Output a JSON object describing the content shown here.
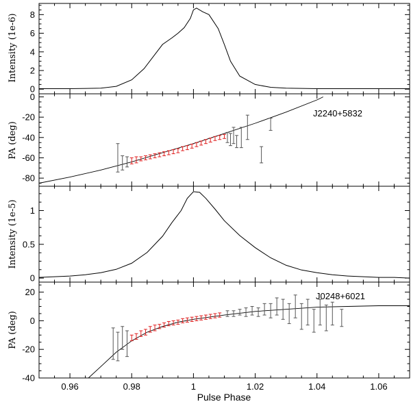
{
  "chart_data": [
    {
      "type": "line",
      "panel": "intensity",
      "ylabel": "Intensity (1e-6)",
      "xlim": [
        0.95,
        1.07
      ],
      "ylim": [
        -0.5,
        9.2
      ],
      "yticks": [
        0,
        2,
        4,
        6,
        8
      ],
      "series": [
        {
          "name": "J2240+5832 profile",
          "x": [
            0.95,
            0.96,
            0.97,
            0.975,
            0.98,
            0.984,
            0.987,
            0.99,
            0.993,
            0.995,
            0.997,
            0.999,
            1.0,
            1.001,
            1.003,
            1.005,
            1.008,
            1.01,
            1.012,
            1.015,
            1.02,
            1.025,
            1.03,
            1.04,
            1.05,
            1.06,
            1.07
          ],
          "y": [
            0.05,
            0.05,
            0.1,
            0.3,
            1.0,
            2.2,
            3.5,
            4.8,
            5.5,
            6.0,
            6.6,
            7.6,
            8.5,
            8.7,
            8.3,
            8.0,
            6.5,
            4.8,
            3.0,
            1.4,
            0.5,
            0.2,
            0.1,
            0.05,
            0.05,
            0.05,
            0.05
          ]
        }
      ]
    },
    {
      "type": "scatter",
      "panel": "pa",
      "pulsar": "J2240+5832",
      "ylabel": "PA (deg)",
      "xlim": [
        0.95,
        1.07
      ],
      "ylim": [
        -88,
        3
      ],
      "yticks": [
        0,
        -20,
        -40,
        -60,
        -80
      ],
      "fit": {
        "x": [
          0.95,
          0.96,
          0.97,
          0.98,
          0.99,
          1.0,
          1.01,
          1.02,
          1.03,
          1.04,
          1.042
        ],
        "y": [
          -85,
          -79,
          -72,
          -64,
          -55,
          -46,
          -36,
          -26,
          -15,
          -3,
          0
        ]
      },
      "points_black": [
        {
          "x": 0.9755,
          "y": -60,
          "err": 14
        },
        {
          "x": 0.977,
          "y": -65,
          "err": 7
        },
        {
          "x": 0.9785,
          "y": -64,
          "err": 5
        },
        {
          "x": 1.011,
          "y": -40,
          "err": 5
        },
        {
          "x": 1.012,
          "y": -42,
          "err": 6
        },
        {
          "x": 1.013,
          "y": -38,
          "err": 8
        },
        {
          "x": 1.014,
          "y": -44,
          "err": 6
        },
        {
          "x": 1.0155,
          "y": -40,
          "err": 10
        },
        {
          "x": 1.0175,
          "y": -30,
          "err": 12
        },
        {
          "x": 1.022,
          "y": -57,
          "err": 8
        },
        {
          "x": 1.025,
          "y": -27,
          "err": 6
        }
      ],
      "points_red": [
        {
          "x": 0.98,
          "y": -63,
          "err": 3
        },
        {
          "x": 0.9815,
          "y": -62,
          "err": 3
        },
        {
          "x": 0.983,
          "y": -61,
          "err": 2
        },
        {
          "x": 0.9845,
          "y": -60,
          "err": 2
        },
        {
          "x": 0.986,
          "y": -59,
          "err": 2
        },
        {
          "x": 0.9875,
          "y": -58,
          "err": 2
        },
        {
          "x": 0.989,
          "y": -57,
          "err": 2
        },
        {
          "x": 0.9905,
          "y": -56,
          "err": 2
        },
        {
          "x": 0.992,
          "y": -55,
          "err": 2
        },
        {
          "x": 0.9935,
          "y": -54,
          "err": 2
        },
        {
          "x": 0.995,
          "y": -53,
          "err": 2
        },
        {
          "x": 0.9965,
          "y": -51,
          "err": 2
        },
        {
          "x": 0.998,
          "y": -50,
          "err": 2
        },
        {
          "x": 0.9995,
          "y": -48.5,
          "err": 2
        },
        {
          "x": 1.001,
          "y": -47,
          "err": 2
        },
        {
          "x": 1.0025,
          "y": -45.5,
          "err": 2
        },
        {
          "x": 1.004,
          "y": -44,
          "err": 2
        },
        {
          "x": 1.0055,
          "y": -42.5,
          "err": 2
        },
        {
          "x": 1.007,
          "y": -41,
          "err": 2
        },
        {
          "x": 1.0085,
          "y": -40,
          "err": 2
        },
        {
          "x": 1.01,
          "y": -39,
          "err": 2
        }
      ]
    },
    {
      "type": "line",
      "panel": "intensity",
      "ylabel": "Intensity (1e-5)",
      "xlim": [
        0.95,
        1.07
      ],
      "ylim": [
        -0.06,
        1.36
      ],
      "yticks": [
        0,
        0.5,
        1
      ],
      "series": [
        {
          "name": "J0248+6021 profile",
          "x": [
            0.95,
            0.955,
            0.96,
            0.965,
            0.97,
            0.975,
            0.98,
            0.985,
            0.99,
            0.993,
            0.996,
            0.998,
            1.0,
            1.002,
            1.004,
            1.007,
            1.01,
            1.015,
            1.02,
            1.025,
            1.03,
            1.035,
            1.04,
            1.045,
            1.05,
            1.055,
            1.06,
            1.065,
            1.07
          ],
          "y": [
            0.01,
            0.02,
            0.03,
            0.05,
            0.08,
            0.13,
            0.22,
            0.38,
            0.62,
            0.82,
            1.0,
            1.18,
            1.28,
            1.27,
            1.18,
            1.02,
            0.85,
            0.63,
            0.45,
            0.3,
            0.19,
            0.12,
            0.08,
            0.05,
            0.03,
            0.02,
            0.01,
            0.01,
            0.0
          ]
        }
      ]
    },
    {
      "type": "scatter",
      "panel": "pa",
      "pulsar": "J0248+6021",
      "ylabel": "PA (deg)",
      "xlabel": "Pulse Phase",
      "xlim": [
        0.95,
        1.07
      ],
      "ylim": [
        -40,
        27
      ],
      "yticks": [
        20,
        0,
        -20,
        -40
      ],
      "xticks": [
        0.96,
        0.98,
        1,
        1.02,
        1.04,
        1.06
      ],
      "xticklabels": [
        "0.96",
        "0.98",
        "1",
        "1.02",
        "1.04",
        "1.06"
      ],
      "fit": {
        "x": [
          0.966,
          0.97,
          0.975,
          0.98,
          0.985,
          0.99,
          0.995,
          1.0,
          1.01,
          1.02,
          1.03,
          1.04,
          1.05,
          1.06,
          1.07
        ],
        "y": [
          -40,
          -32,
          -22,
          -14,
          -8,
          -4,
          -1,
          1,
          4,
          6.5,
          8,
          9.5,
          10,
          10.5,
          10.5
        ]
      },
      "points_black": [
        {
          "x": 0.974,
          "y": -16,
          "err": 11
        },
        {
          "x": 0.9755,
          "y": -18,
          "err": 10
        },
        {
          "x": 0.977,
          "y": -12,
          "err": 8
        },
        {
          "x": 0.9785,
          "y": -16,
          "err": 9
        },
        {
          "x": 1.011,
          "y": 5,
          "err": 2
        },
        {
          "x": 1.013,
          "y": 5,
          "err": 2
        },
        {
          "x": 1.015,
          "y": 6,
          "err": 2
        },
        {
          "x": 1.017,
          "y": 6,
          "err": 3
        },
        {
          "x": 1.019,
          "y": 7,
          "err": 3
        },
        {
          "x": 1.021,
          "y": 6,
          "err": 3
        },
        {
          "x": 1.023,
          "y": 8,
          "err": 4
        },
        {
          "x": 1.025,
          "y": 7,
          "err": 5
        },
        {
          "x": 1.027,
          "y": 10,
          "err": 6
        },
        {
          "x": 1.029,
          "y": 8,
          "err": 7
        },
        {
          "x": 1.031,
          "y": 5,
          "err": 7
        },
        {
          "x": 1.033,
          "y": 10,
          "err": 8
        },
        {
          "x": 1.035,
          "y": 3,
          "err": 9
        },
        {
          "x": 1.037,
          "y": 6,
          "err": 9
        },
        {
          "x": 1.039,
          "y": 0,
          "err": 8
        },
        {
          "x": 1.041,
          "y": 6,
          "err": 9
        },
        {
          "x": 1.043,
          "y": 2,
          "err": 9
        },
        {
          "x": 1.045,
          "y": 5,
          "err": 8
        },
        {
          "x": 1.048,
          "y": 2,
          "err": 6
        }
      ],
      "points_red": [
        {
          "x": 0.98,
          "y": -12,
          "err": 2
        },
        {
          "x": 0.9815,
          "y": -11,
          "err": 2
        },
        {
          "x": 0.983,
          "y": -9,
          "err": 2
        },
        {
          "x": 0.9845,
          "y": -8,
          "err": 2
        },
        {
          "x": 0.986,
          "y": -6,
          "err": 2
        },
        {
          "x": 0.9875,
          "y": -5,
          "err": 2
        },
        {
          "x": 0.989,
          "y": -4,
          "err": 1.5
        },
        {
          "x": 0.9905,
          "y": -3,
          "err": 1.5
        },
        {
          "x": 0.992,
          "y": -2,
          "err": 1.5
        },
        {
          "x": 0.9935,
          "y": -1.5,
          "err": 1.5
        },
        {
          "x": 0.995,
          "y": -1,
          "err": 1.5
        },
        {
          "x": 0.9965,
          "y": 0,
          "err": 1.5
        },
        {
          "x": 0.998,
          "y": 0.5,
          "err": 1.5
        },
        {
          "x": 0.9995,
          "y": 1,
          "err": 1.5
        },
        {
          "x": 1.001,
          "y": 1.5,
          "err": 1.5
        },
        {
          "x": 1.0025,
          "y": 2,
          "err": 1.5
        },
        {
          "x": 1.004,
          "y": 2.5,
          "err": 1.5
        },
        {
          "x": 1.0055,
          "y": 3,
          "err": 1.5
        },
        {
          "x": 1.007,
          "y": 3.5,
          "err": 1.5
        },
        {
          "x": 1.0085,
          "y": 4,
          "err": 1.5
        }
      ]
    }
  ]
}
